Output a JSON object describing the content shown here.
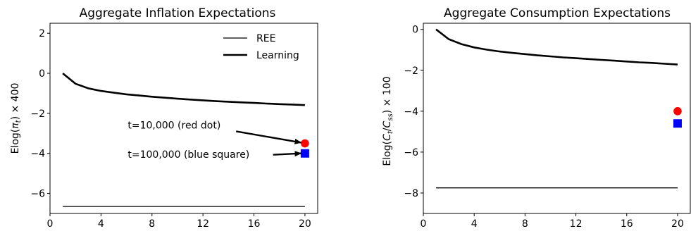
{
  "chart_data": [
    {
      "type": "line",
      "title": "Aggregate Inflation Expectations",
      "ylabel_prefix": "E",
      "ylabel_func": "log(",
      "ylabel_var": "π",
      "ylabel_sub": "t",
      "ylabel_suffix": ") × 400",
      "xlim": [
        0,
        21
      ],
      "ylim": [
        -7.0,
        2.5
      ],
      "xticks": [
        0,
        4,
        8,
        12,
        16,
        20
      ],
      "yticks": [
        2,
        0,
        -2,
        -4,
        -6
      ],
      "xtick_labels": [
        "0",
        "4",
        "8",
        "12",
        "16",
        "20"
      ],
      "ytick_labels": [
        "2",
        "0",
        "−2",
        "−4",
        "−6"
      ],
      "legend": {
        "position": "upper right",
        "entries": [
          "REE",
          "Learning"
        ]
      },
      "series": [
        {
          "name": "REE",
          "x": [
            1,
            20
          ],
          "y": [
            -6.65,
            -6.65
          ],
          "style": "thin"
        },
        {
          "name": "Learning",
          "x": [
            1,
            2,
            3,
            4,
            5,
            6,
            7,
            8,
            9,
            10,
            11,
            12,
            13,
            14,
            15,
            16,
            17,
            18,
            19,
            20
          ],
          "y": [
            0.0,
            -0.52,
            -0.75,
            -0.88,
            -0.97,
            -1.05,
            -1.11,
            -1.17,
            -1.22,
            -1.27,
            -1.31,
            -1.35,
            -1.39,
            -1.42,
            -1.45,
            -1.48,
            -1.51,
            -1.54,
            -1.56,
            -1.59
          ],
          "style": "thick"
        }
      ],
      "markers": [
        {
          "label": "red dot",
          "shape": "circle",
          "color": "#ff0000",
          "x": 20,
          "y": -3.5
        },
        {
          "label": "blue square",
          "shape": "square",
          "color": "#0000ff",
          "x": 20,
          "y": -4.0
        }
      ],
      "annotations": [
        {
          "text": "t=10,000 (red dot)",
          "text_x": 6.1,
          "text_y": -2.58,
          "arrow_from": [
            14.6,
            -2.9
          ],
          "arrow_to": [
            19.7,
            -3.46
          ]
        },
        {
          "text": "t=100,000 (blue square)",
          "text_x": 6.1,
          "text_y": -4.04,
          "arrow_from": [
            17.5,
            -4.07
          ],
          "arrow_to": [
            19.7,
            -4.0
          ]
        }
      ]
    },
    {
      "type": "line",
      "title": "Aggregate Consumption Expectations",
      "ylabel_prefix": "E",
      "ylabel_func": "log(",
      "ylabel_var": "C",
      "ylabel_sub": "t",
      "ylabel_div": "/",
      "ylabel_var2": "C",
      "ylabel_sub2": "ss",
      "ylabel_suffix": ") × 100",
      "xlim": [
        0,
        21
      ],
      "ylim": [
        -9.0,
        0.3
      ],
      "xticks": [
        0,
        4,
        8,
        12,
        16,
        20
      ],
      "yticks": [
        0,
        -2,
        -4,
        -6,
        -8
      ],
      "xtick_labels": [
        "0",
        "4",
        "8",
        "12",
        "16",
        "20"
      ],
      "ytick_labels": [
        "0",
        "−2",
        "−4",
        "−6",
        "−8"
      ],
      "series": [
        {
          "name": "REE",
          "x": [
            1,
            20
          ],
          "y": [
            -7.75,
            -7.75
          ],
          "style": "thin"
        },
        {
          "name": "Learning",
          "x": [
            1,
            2,
            3,
            4,
            5,
            6,
            7,
            8,
            9,
            10,
            11,
            12,
            13,
            14,
            15,
            16,
            17,
            18,
            19,
            20
          ],
          "y": [
            0.0,
            -0.48,
            -0.72,
            -0.88,
            -0.99,
            -1.08,
            -1.15,
            -1.21,
            -1.27,
            -1.32,
            -1.37,
            -1.41,
            -1.45,
            -1.49,
            -1.53,
            -1.57,
            -1.61,
            -1.64,
            -1.68,
            -1.72
          ],
          "style": "thick"
        }
      ],
      "markers": [
        {
          "label": "red dot",
          "shape": "circle",
          "color": "#ff0000",
          "x": 20,
          "y": -4.0
        },
        {
          "label": "blue square",
          "shape": "square",
          "color": "#0000ff",
          "x": 20,
          "y": -4.6
        }
      ],
      "annotations": []
    }
  ]
}
